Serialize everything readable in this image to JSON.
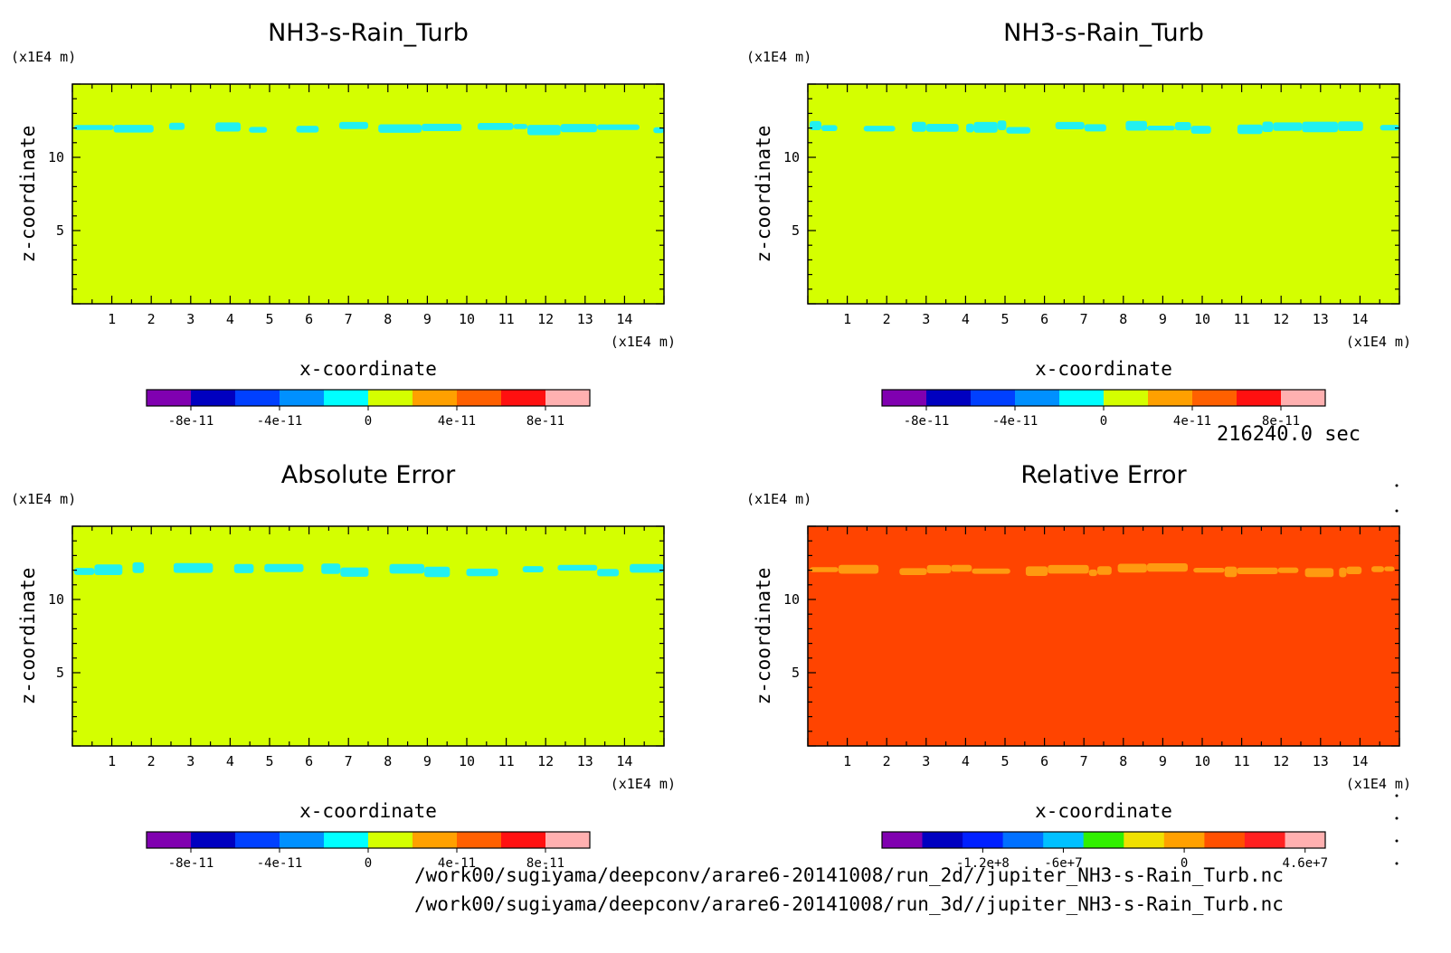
{
  "chart_data": [
    {
      "type": "heatmap",
      "title": "NH3-s-Rain_Turb",
      "xlabel": "x-coordinate",
      "ylabel": "z-coordinate",
      "x_unit": "(x1E4 m)",
      "y_unit": "(x1E4 m)",
      "xlim": [
        0,
        15
      ],
      "ylim": [
        0,
        15
      ],
      "x_ticks": [
        "1",
        "2",
        "3",
        "4",
        "5",
        "6",
        "7",
        "8",
        "9",
        "10",
        "11",
        "12",
        "13",
        "14"
      ],
      "y_ticks": [
        "5",
        "10"
      ],
      "background_level": 0,
      "feature_band": {
        "z_center": 12,
        "value": -1e-11,
        "color": "#22f0f0"
      },
      "colorbar": {
        "colors": [
          "#8000b0",
          "#0000c0",
          "#0040ff",
          "#0090ff",
          "#00ffff",
          "#d4ff00",
          "#ffa000",
          "#ff6000",
          "#ff1010",
          "#ffb0b0"
        ],
        "labels": [
          "-8e-11",
          "-4e-11",
          "0",
          "4e-11",
          "8e-11"
        ]
      },
      "fill_color": "#d4ff00"
    },
    {
      "type": "heatmap",
      "title": "NH3-s-Rain_Turb",
      "xlabel": "x-coordinate",
      "ylabel": "z-coordinate",
      "x_unit": "(x1E4 m)",
      "y_unit": "(x1E4 m)",
      "xlim": [
        0,
        15
      ],
      "ylim": [
        0,
        15
      ],
      "x_ticks": [
        "1",
        "2",
        "3",
        "4",
        "5",
        "6",
        "7",
        "8",
        "9",
        "10",
        "11",
        "12",
        "13",
        "14"
      ],
      "y_ticks": [
        "5",
        "10"
      ],
      "background_level": 0,
      "feature_band": {
        "z_center": 12,
        "value": -1e-11,
        "color": "#22f0f0"
      },
      "colorbar": {
        "colors": [
          "#8000b0",
          "#0000c0",
          "#0040ff",
          "#0090ff",
          "#00ffff",
          "#d4ff00",
          "#ffa000",
          "#ff6000",
          "#ff1010",
          "#ffb0b0"
        ],
        "labels": [
          "-8e-11",
          "-4e-11",
          "0",
          "4e-11",
          "8e-11"
        ]
      },
      "fill_color": "#d4ff00"
    },
    {
      "type": "heatmap",
      "title": "Absolute Error",
      "xlabel": "x-coordinate",
      "ylabel": "z-coordinate",
      "x_unit": "(x1E4 m)",
      "y_unit": "(x1E4 m)",
      "xlim": [
        0,
        15
      ],
      "ylim": [
        0,
        15
      ],
      "x_ticks": [
        "1",
        "2",
        "3",
        "4",
        "5",
        "6",
        "7",
        "8",
        "9",
        "10",
        "11",
        "12",
        "13",
        "14"
      ],
      "y_ticks": [
        "5",
        "10"
      ],
      "background_level": 0,
      "feature_band": {
        "z_center": 12,
        "value": -1e-11,
        "color": "#22f0f0"
      },
      "colorbar": {
        "colors": [
          "#8000b0",
          "#0000c0",
          "#0040ff",
          "#0090ff",
          "#00ffff",
          "#d4ff00",
          "#ffa000",
          "#ff6000",
          "#ff1010",
          "#ffb0b0"
        ],
        "labels": [
          "-8e-11",
          "-4e-11",
          "0",
          "4e-11",
          "8e-11"
        ]
      },
      "fill_color": "#d4ff00"
    },
    {
      "type": "heatmap",
      "title": "Relative Error",
      "xlabel": "x-coordinate",
      "ylabel": "z-coordinate",
      "x_unit": "(x1E4 m)",
      "y_unit": "(x1E4 m)",
      "xlim": [
        0,
        15
      ],
      "ylim": [
        0,
        15
      ],
      "x_ticks": [
        "1",
        "2",
        "3",
        "4",
        "5",
        "6",
        "7",
        "8",
        "9",
        "10",
        "11",
        "12",
        "13",
        "14"
      ],
      "y_ticks": [
        "5",
        "10"
      ],
      "background_level": 0,
      "feature_band": {
        "z_center": 12,
        "value": 20000000.0,
        "color": "#ff9a10"
      },
      "colorbar": {
        "colors": [
          "#8000b0",
          "#0000c0",
          "#0020ff",
          "#0070ff",
          "#00c0ff",
          "#30f000",
          "#f0e000",
          "#ffa000",
          "#ff5000",
          "#ff2020",
          "#ffb0b0"
        ],
        "labels": [
          "-1.2e+8",
          "-6e+7",
          "0",
          "4.6e+7"
        ]
      },
      "fill_color": "#ff4400"
    }
  ],
  "time_label": "216240.0 sec",
  "footer": {
    "line1": "/work00/sugiyama/deepconv/arare6-20141008/run_2d//jupiter_NH3-s-Rain_Turb.nc",
    "line2": "/work00/sugiyama/deepconv/arare6-20141008/run_3d//jupiter_NH3-s-Rain_Turb.nc"
  }
}
